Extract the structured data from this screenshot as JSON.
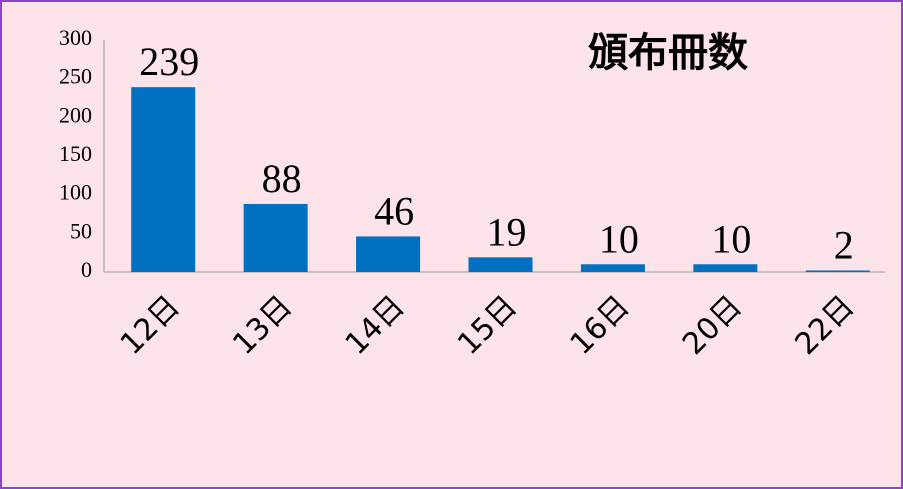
{
  "chart_data": {
    "type": "bar",
    "title": "頒布冊数",
    "categories": [
      "12日",
      "13日",
      "14日",
      "15日",
      "16日",
      "20日",
      "22日"
    ],
    "values": [
      239,
      88,
      46,
      19,
      10,
      10,
      2
    ],
    "color": "#0070c0",
    "ylim": [
      0,
      300
    ],
    "yticks": [
      0,
      50,
      100,
      150,
      200,
      250,
      300
    ],
    "grid": false
  }
}
